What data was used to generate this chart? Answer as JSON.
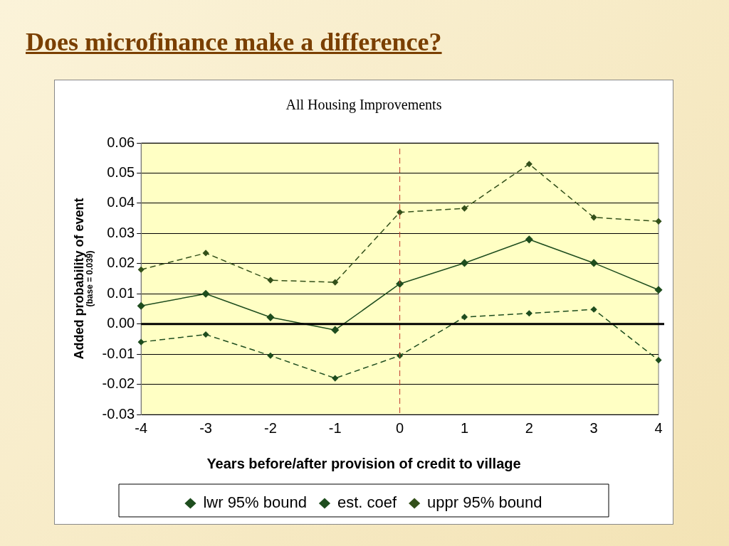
{
  "chart_data": {
    "type": "line",
    "title": "Does microfinance make a difference?",
    "subtitle": "All Housing Improvements",
    "xlabel": "Years before/after provision of credit to village",
    "ylabel": "Added probability of event",
    "annotations": [
      "(base = 0.039)"
    ],
    "categories": [
      "-4",
      "-3",
      "-2",
      "-1",
      "0",
      "1",
      "2",
      "3",
      "4"
    ],
    "series": [
      {
        "name": "lwr 95% bound",
        "color": "#1e4d1e",
        "line_style": "dashed",
        "values": [
          -0.006,
          -0.0035,
          -0.0105,
          -0.018,
          -0.0105,
          0.0023,
          0.0035,
          0.0048,
          -0.012
        ]
      },
      {
        "name": "est. coef",
        "color": "#1e4d1e",
        "line_style": "solid",
        "values": [
          0.006,
          0.01,
          0.0022,
          -0.002,
          0.0133,
          0.0202,
          0.028,
          0.0202,
          0.0113
        ]
      },
      {
        "name": "uppr 95% bound",
        "color": "#33501a",
        "line_style": "dashed",
        "values": [
          0.018,
          0.0235,
          0.0145,
          0.0138,
          0.037,
          0.0383,
          0.053,
          0.0353,
          0.034
        ]
      }
    ],
    "ylim": [
      -0.03,
      0.06
    ],
    "yticks": [
      {
        "value": -0.03,
        "label": "-0.03"
      },
      {
        "value": -0.02,
        "label": "-0.02"
      },
      {
        "value": -0.01,
        "label": "-0.01"
      },
      {
        "value": 0,
        "label": "0.00"
      },
      {
        "value": 0.01,
        "label": "0.01"
      },
      {
        "value": 0.02,
        "label": "0.02"
      },
      {
        "value": 0.03,
        "label": "0.03"
      },
      {
        "value": 0.04,
        "label": "0.04"
      },
      {
        "value": 0.05,
        "label": "0.05"
      },
      {
        "value": 0.06,
        "label": "0.06"
      }
    ],
    "ref_lines": [
      {
        "axis": "x",
        "value": "0",
        "color": "#c0392b",
        "line_style": "dashed"
      }
    ],
    "grid": "y",
    "legend": "bottom",
    "marker": "diamond"
  }
}
